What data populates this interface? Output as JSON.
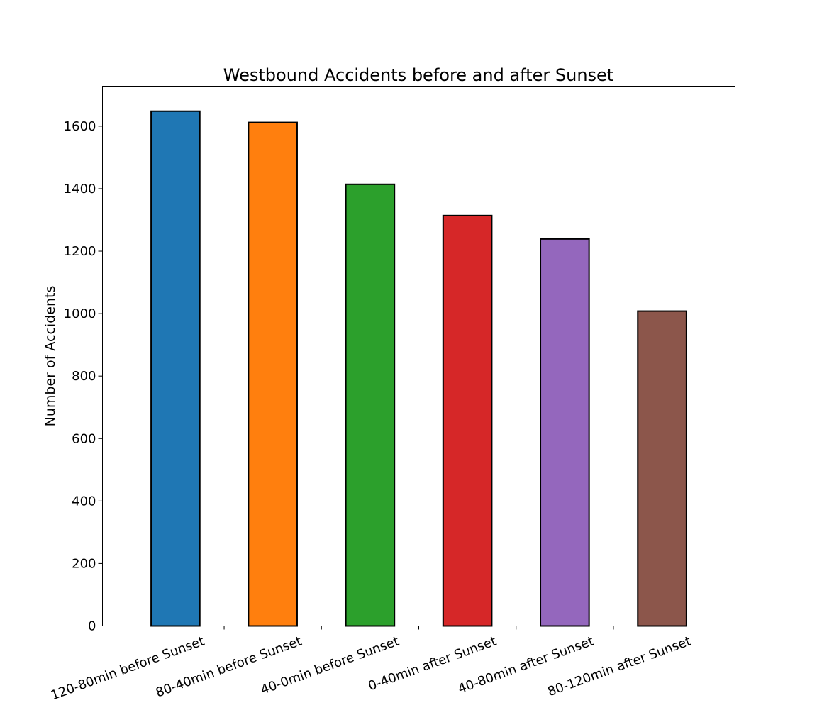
{
  "chart_data": {
    "type": "bar",
    "title": "Westbound Accidents before and after Sunset",
    "xlabel": "",
    "ylabel": "Number of Accidents",
    "categories": [
      "120-80min before Sunset",
      "80-40min before Sunset",
      "40-0min before Sunset",
      "0-40min after Sunset",
      "40-80min after Sunset",
      "80-120min after Sunset"
    ],
    "values": [
      1648,
      1612,
      1414,
      1314,
      1239,
      1008
    ],
    "colors": [
      "#1f77b4",
      "#ff7f0e",
      "#2ca02c",
      "#d62728",
      "#9467bd",
      "#8c564b"
    ],
    "ylim": [
      0,
      1728
    ],
    "yticks": [
      0,
      200,
      400,
      600,
      800,
      1000,
      1200,
      1400,
      1600
    ],
    "grid": false,
    "legend": "none",
    "xtick_rotation": -20
  }
}
